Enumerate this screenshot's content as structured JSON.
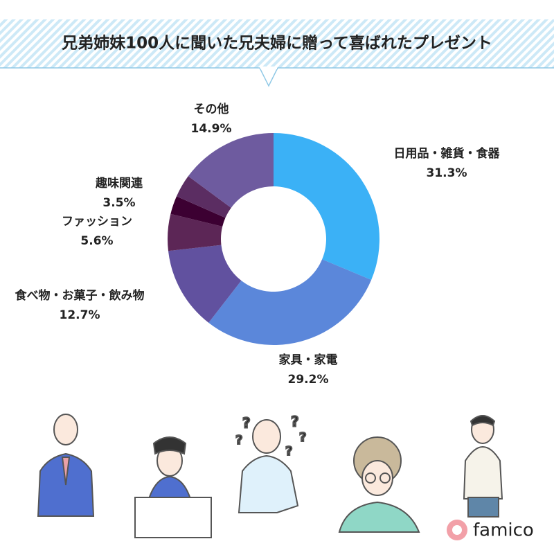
{
  "chart_data": {
    "type": "pie",
    "donut": true,
    "title": "兄弟姉妹100人に聞いた兄夫婦に贈って喜ばれたプレゼント",
    "categories": [
      "日用品・雑貨・食器",
      "家具・家電",
      "食べ物・お菓子・飲み物",
      "ファッション",
      null,
      "趣味関連",
      "その他"
    ],
    "values": [
      31.3,
      29.2,
      12.7,
      5.6,
      2.8,
      3.5,
      14.9
    ],
    "value_labels": [
      "31.3%",
      "29.2%",
      "12.7%",
      "5.6%",
      null,
      "3.5%",
      "14.9%"
    ],
    "colors": [
      "#3bb1f6",
      "#5b87da",
      "#61519f",
      "#5c2656",
      "#3c0032",
      "#5b2d62",
      "#6e5b9f"
    ]
  },
  "brand": "famico"
}
